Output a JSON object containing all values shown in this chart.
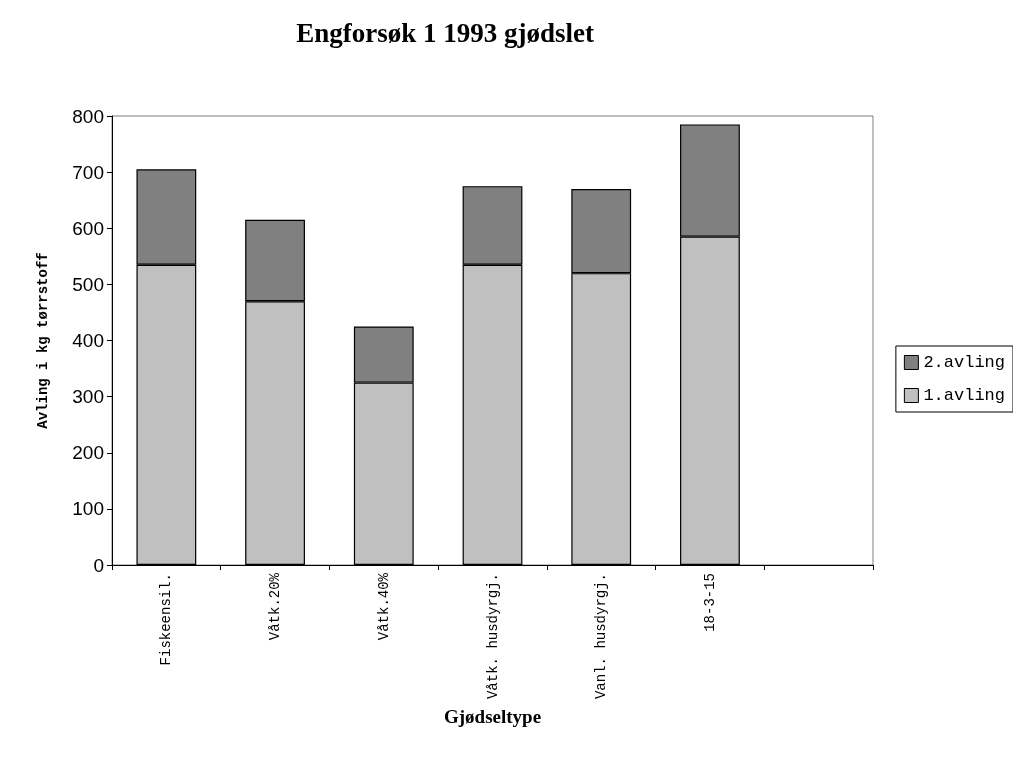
{
  "chart_data": {
    "type": "bar",
    "title": "Engforsøk 1 1993 gjødslet",
    "xlabel": "Gjødseltype",
    "ylabel": "Avling i kg tørrstoff",
    "categories": [
      "Fiskeensil.",
      "Våtk.20%",
      "Våtk.40%",
      "Våtk. husdyrgj.",
      "Vanl. husdyrgj.",
      "18-3-15",
      null
    ],
    "series": [
      {
        "name": "1.avling",
        "color": "#c0c0c0",
        "values": [
          535,
          470,
          325,
          535,
          520,
          585,
          null
        ]
      },
      {
        "name": "2.avling",
        "color": "#808080",
        "values": [
          170,
          145,
          100,
          140,
          150,
          200,
          null
        ]
      }
    ],
    "stacked": true,
    "ylim": [
      0,
      800
    ],
    "yticks": [
      0,
      100,
      200,
      300,
      400,
      500,
      600,
      700,
      800
    ],
    "grid": false,
    "legend": "right"
  }
}
